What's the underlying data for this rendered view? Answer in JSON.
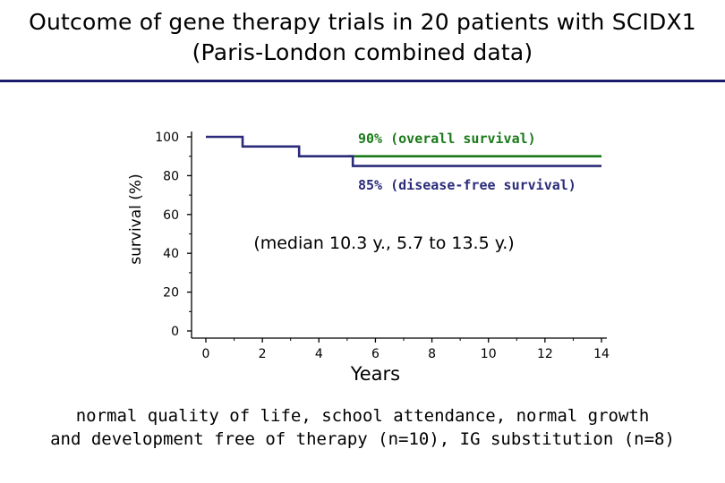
{
  "slide": {
    "title_line1": "Outcome of gene therapy trials in 20 patients with SCIDX1",
    "title_line2": "(Paris-London combined data)",
    "footer_line1": "normal quality of life, school attendance, normal growth",
    "footer_line2": "and development free of therapy (n=10), IG substitution (n=8)"
  },
  "chart_data": {
    "type": "line",
    "title": "",
    "xlabel": "Years",
    "ylabel": "survival (%)",
    "xlim": [
      0,
      14
    ],
    "ylim": [
      0,
      100
    ],
    "x_ticks": [
      "0",
      "2",
      "4",
      "6",
      "8",
      "10",
      "12",
      "14"
    ],
    "y_ticks": [
      "0",
      "20",
      "40",
      "60",
      "80",
      "100"
    ],
    "grid": false,
    "series": [
      {
        "name": "90% (overall survival)",
        "color": "#1a7a1a",
        "x": [
          5,
          14
        ],
        "y": [
          90,
          90
        ]
      },
      {
        "name": "85% (disease-free survival)",
        "color": "#2b2b7a",
        "x": [
          0,
          1.3,
          1.3,
          3.3,
          3.3,
          5.2,
          5.2,
          14
        ],
        "y": [
          100,
          100,
          95,
          95,
          90,
          90,
          85,
          85
        ]
      }
    ],
    "annotations": [
      "90% (overall survival)",
      "85% (disease-free survival)",
      "(median 10.3 y., 5.7 to 13.5 y.)"
    ]
  }
}
